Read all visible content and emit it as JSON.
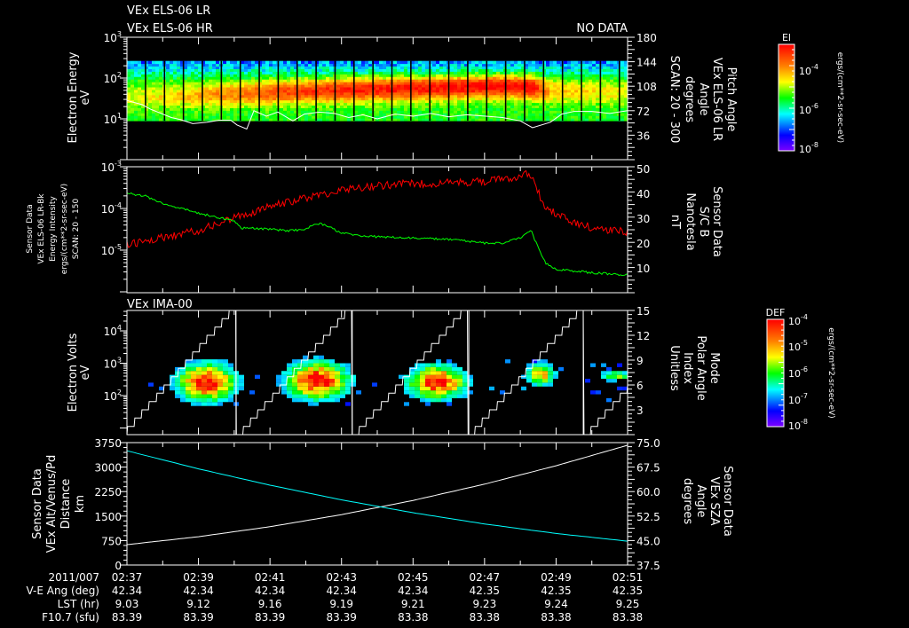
{
  "header": {
    "title_lr": "VEx ELS-06 LR",
    "title_hr": "VEx ELS-06 HR",
    "no_data": "NO DATA",
    "ima_title": "VEx IMA-00"
  },
  "colors": {
    "background": "#000000",
    "axis": "#ffffff",
    "intensity_line": "#ff0000",
    "bfield_line": "#00ff00",
    "altitude_line": "#ffffff",
    "sza_line": "#00ffff",
    "pitch_line": "#ffffff"
  },
  "time_axis": {
    "start_min_label": "02:37",
    "labels": [
      "02:37",
      "02:39",
      "02:41",
      "02:43",
      "02:45",
      "02:47",
      "02:49",
      "02:51"
    ],
    "span_minutes": 14
  },
  "footer_table": {
    "row_labels": [
      "2011/007",
      "V-E Ang (deg)",
      "LST (hr)",
      "F10.7 (sfu)"
    ],
    "v_e_ang": [
      "42.34",
      "42.34",
      "42.34",
      "42.34",
      "42.34",
      "42.35",
      "42.35",
      "42.35"
    ],
    "lst": [
      "9.03",
      "9.12",
      "9.16",
      "9.19",
      "9.21",
      "9.23",
      "9.24",
      "9.25"
    ],
    "f107": [
      "83.39",
      "83.39",
      "83.39",
      "83.39",
      "83.38",
      "83.38",
      "83.38",
      "83.38"
    ]
  },
  "chart_data": [
    {
      "id": "els-spectrogram",
      "type": "heatmap",
      "left_label": [
        "Electron Energy",
        "eV"
      ],
      "left_ticks": [
        {
          "m": "10",
          "e": "1"
        },
        {
          "m": "10",
          "e": "2"
        },
        {
          "m": "10",
          "e": "3"
        }
      ],
      "left_range_log10": [
        0,
        3
      ],
      "right_label": [
        "Pitch Angle",
        "VEx ELS-06 LR",
        "Angle",
        "degrees",
        "SCAN: 20 - 300"
      ],
      "right_ticks": [
        "36",
        "72",
        "108",
        "144",
        "180"
      ],
      "right_range": [
        0,
        180
      ],
      "energy_range_eV": [
        9,
        263
      ],
      "scan_gap_interval_min": 0.53,
      "peak_profile": [
        {
          "t": 0,
          "logE": 1.5,
          "amp": 0.12
        },
        {
          "t": 2,
          "logE": 1.55,
          "amp": 0.25
        },
        {
          "t": 4,
          "logE": 1.62,
          "amp": 0.38
        },
        {
          "t": 6,
          "logE": 1.68,
          "amp": 0.45
        },
        {
          "t": 8,
          "logE": 1.72,
          "amp": 0.48
        },
        {
          "t": 10.5,
          "logE": 1.78,
          "amp": 0.5
        },
        {
          "t": 11.3,
          "logE": 1.75,
          "amp": 0.5
        },
        {
          "t": 11.8,
          "logE": 1.65,
          "amp": 0.22
        },
        {
          "t": 14,
          "logE": 1.6,
          "amp": 0.15
        }
      ],
      "pitch_angle_line": [
        [
          0,
          87
        ],
        [
          0.42,
          81
        ],
        [
          0.67,
          74
        ],
        [
          1.24,
          62
        ],
        [
          1.49,
          59
        ],
        [
          1.84,
          53
        ],
        [
          2.23,
          55
        ],
        [
          2.58,
          58
        ],
        [
          2.9,
          58
        ],
        [
          3.08,
          51
        ],
        [
          3.35,
          45
        ],
        [
          3.55,
          72
        ],
        [
          3.9,
          64
        ],
        [
          4.22,
          70
        ],
        [
          4.64,
          57
        ],
        [
          4.96,
          67
        ],
        [
          5.38,
          70
        ],
        [
          5.8,
          68
        ],
        [
          6.2,
          62
        ],
        [
          6.6,
          66
        ],
        [
          7,
          60
        ],
        [
          7.5,
          67
        ],
        [
          8,
          64
        ],
        [
          8.5,
          68
        ],
        [
          9,
          63
        ],
        [
          9.5,
          66
        ],
        [
          10,
          64
        ],
        [
          10.5,
          62
        ],
        [
          11,
          57
        ],
        [
          11.34,
          47
        ],
        [
          11.84,
          55
        ],
        [
          12.16,
          67
        ],
        [
          12.5,
          71
        ],
        [
          13,
          71
        ],
        [
          13.5,
          68
        ],
        [
          14,
          72
        ]
      ],
      "colorbar": {
        "title": "El",
        "ticks": [
          {
            "m": "10",
            "e": "-4"
          },
          {
            "m": "10",
            "e": "-6"
          },
          {
            "m": "10",
            "e": "-8"
          }
        ],
        "unit": "ergs/(cm**2-sr-sec-eV)"
      }
    },
    {
      "id": "intensity-bfield",
      "type": "line",
      "left_label": [
        "Sensor Data",
        "VEx ELS-06 LR-Bk",
        "Energy Intensity",
        "ergs/(cm**2-sr-sec-eV)",
        "SCAN: 20 - 150"
      ],
      "left_ticks": [
        {
          "m": "10",
          "e": "-5"
        },
        {
          "m": "10",
          "e": "-4"
        },
        {
          "m": "10",
          "e": "-3"
        }
      ],
      "left_range_log10": [
        -6,
        -3
      ],
      "right_label": [
        "Sensor Data",
        "S/C B",
        "Nanotesla",
        "nT"
      ],
      "right_ticks": [
        "10",
        "20",
        "30",
        "40",
        "50"
      ],
      "right_range": [
        0,
        50
      ],
      "series": [
        {
          "name": "Energy Intensity",
          "axis": "left",
          "values": [
            [
              0,
              1.4e-05
            ],
            [
              0.5,
              1.6e-05
            ],
            [
              1,
              2e-05
            ],
            [
              1.5,
              2.4e-05
            ],
            [
              2,
              3e-05
            ],
            [
              2.5,
              4e-05
            ],
            [
              3,
              6e-05
            ],
            [
              3.5,
              8e-05
            ],
            [
              4,
              0.00011
            ],
            [
              4.5,
              0.00014
            ],
            [
              5,
              0.00018
            ],
            [
              5.5,
              0.00022
            ],
            [
              6,
              0.00028
            ],
            [
              6.5,
              0.00032
            ],
            [
              7,
              0.00035
            ],
            [
              7.5,
              0.00038
            ],
            [
              8,
              0.00039
            ],
            [
              8.5,
              0.0004
            ],
            [
              9,
              0.00041
            ],
            [
              9.5,
              0.00043
            ],
            [
              10,
              0.00045
            ],
            [
              10.5,
              0.0005
            ],
            [
              11,
              0.0006
            ],
            [
              11.2,
              0.0007
            ],
            [
              11.4,
              0.0004
            ],
            [
              11.6,
              0.00013
            ],
            [
              12,
              7e-05
            ],
            [
              12.5,
              4.5e-05
            ],
            [
              13,
              3.5e-05
            ],
            [
              13.5,
              3e-05
            ],
            [
              14,
              2.8e-05
            ]
          ]
        },
        {
          "name": "S/C B",
          "axis": "right",
          "values": [
            [
              0,
              40
            ],
            [
              0.5,
              39
            ],
            [
              1,
              36
            ],
            [
              1.5,
              34
            ],
            [
              2,
              32
            ],
            [
              2.5,
              30.5
            ],
            [
              3,
              29
            ],
            [
              3.2,
              26
            ],
            [
              3.5,
              26
            ],
            [
              4,
              25.5
            ],
            [
              4.5,
              25
            ],
            [
              5,
              25.5
            ],
            [
              5.3,
              28
            ],
            [
              5.6,
              27
            ],
            [
              6,
              24
            ],
            [
              6.5,
              23
            ],
            [
              7,
              22.5
            ],
            [
              8,
              22
            ],
            [
              9,
              21.5
            ],
            [
              10,
              20
            ],
            [
              10.5,
              20
            ],
            [
              11,
              22
            ],
            [
              11.3,
              25
            ],
            [
              11.5,
              18
            ],
            [
              11.7,
              12
            ],
            [
              12,
              9.5
            ],
            [
              13,
              8
            ],
            [
              14,
              7.2
            ]
          ]
        }
      ]
    },
    {
      "id": "ima-spectrogram",
      "type": "heatmap",
      "left_label": [
        "Electron Volts",
        "eV"
      ],
      "left_ticks": [
        {
          "m": "10",
          "e": "2"
        },
        {
          "m": "10",
          "e": "3"
        },
        {
          "m": "10",
          "e": "4"
        }
      ],
      "right_label": [
        "Mode",
        "Polar Angle",
        "Index",
        "Unitless"
      ],
      "right_ticks": [
        "3",
        "6",
        "9",
        "12",
        "15"
      ],
      "right_range": [
        0,
        15
      ],
      "blobs": [
        {
          "t": 2.16,
          "logE": 2.35,
          "amp": 1.0,
          "dt": 0.7,
          "dlogE": 0.5
        },
        {
          "t": 5.26,
          "logE": 2.4,
          "amp": 1.0,
          "dt": 0.75,
          "dlogE": 0.5
        },
        {
          "t": 8.6,
          "logE": 2.35,
          "amp": 0.95,
          "dt": 0.7,
          "dlogE": 0.45
        },
        {
          "t": 11.5,
          "logE": 2.6,
          "amp": 0.7,
          "dt": 0.35,
          "dlogE": 0.3
        },
        {
          "t": 13.6,
          "logE": 2.55,
          "amp": 0.45,
          "dt": 0.4,
          "dlogE": 0.15
        }
      ],
      "polar_index_reset_times": [
        3.05,
        6.3,
        9.56,
        12.76
      ],
      "polar_index_period_min": 3.24,
      "colorbar": {
        "title": "DEF",
        "ticks": [
          {
            "m": "10",
            "e": "-4"
          },
          {
            "m": "10",
            "e": "-5"
          },
          {
            "m": "10",
            "e": "-6"
          },
          {
            "m": "10",
            "e": "-7"
          },
          {
            "m": "10",
            "e": "-8"
          }
        ],
        "unit": "ergs/(cm**2-sr-sec-eV)"
      }
    },
    {
      "id": "altitude-sza",
      "type": "line",
      "left_label": [
        "Sensor Data",
        "VEx Alt/Venus/Pd",
        "Distance",
        "km"
      ],
      "left_ticks": [
        "0",
        "750",
        "1500",
        "2250",
        "3000",
        "3750"
      ],
      "left_range": [
        0,
        3750
      ],
      "right_label": [
        "Sensor Data",
        "VEx SZA",
        "Angle",
        "degrees"
      ],
      "right_ticks": [
        "37.5",
        "45.0",
        "52.5",
        "60.0",
        "67.5",
        "75.0"
      ],
      "right_range": [
        37.5,
        75
      ],
      "series": [
        {
          "name": "VEx Alt/Venus/Pd",
          "axis": "left",
          "values": [
            [
              0,
              625
            ],
            [
              2,
              867
            ],
            [
              4,
              1174
            ],
            [
              6,
              1543
            ],
            [
              8,
              1979
            ],
            [
              10,
              2478
            ],
            [
              12,
              3042
            ],
            [
              14,
              3670
            ]
          ]
        },
        {
          "name": "VEx SZA",
          "axis": "right",
          "values": [
            [
              0,
              72.5
            ],
            [
              2,
              66.97
            ],
            [
              4,
              61.97
            ],
            [
              6,
              57.47
            ],
            [
              8,
              53.52
            ],
            [
              10,
              50.08
            ],
            [
              12,
              47.17
            ],
            [
              14,
              44.8
            ]
          ]
        }
      ]
    }
  ]
}
